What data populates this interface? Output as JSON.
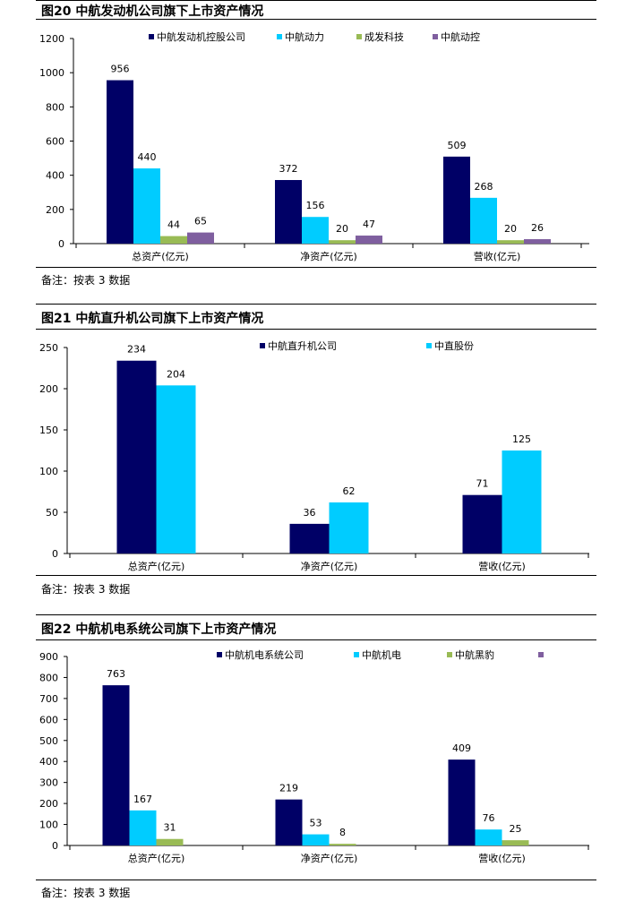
{
  "charts": [
    {
      "title": "图20 中航发动机公司旗下上市资产情况",
      "note": "备注：按表 3 数据"
    },
    {
      "title": "图21 中航直升机公司旗下上市资产情况",
      "note": "备注：按表 3 数据"
    },
    {
      "title": "图22 中航机电系统公司旗下上市资产情况",
      "note": "备注：按表 3 数据"
    }
  ],
  "chart_data": [
    {
      "type": "bar",
      "title": "图20 中航发动机公司旗下上市资产情况",
      "categories": [
        "总资产(亿元)",
        "净资产(亿元)",
        "营收(亿元)"
      ],
      "series": [
        {
          "name": "中航发动机控股公司",
          "color": "#000066",
          "values": [
            956,
            372,
            509
          ]
        },
        {
          "name": "中航动力",
          "color": "#00ccff",
          "values": [
            440,
            156,
            268
          ]
        },
        {
          "name": "成发科技",
          "color": "#99bb55",
          "values": [
            44,
            20,
            20
          ]
        },
        {
          "name": "中航动控",
          "color": "#7f5f9f",
          "values": [
            65,
            47,
            26
          ]
        }
      ],
      "ylim": [
        0,
        1200
      ],
      "yticks": [
        0,
        200,
        400,
        600,
        800,
        1000,
        1200
      ],
      "legend": "top",
      "grid": false
    },
    {
      "type": "bar",
      "title": "图21 中航直升机公司旗下上市资产情况",
      "categories": [
        "总资产(亿元)",
        "净资产(亿元)",
        "营收(亿元)"
      ],
      "series": [
        {
          "name": "中航直升机公司",
          "color": "#000066",
          "values": [
            234,
            36,
            71
          ]
        },
        {
          "name": "中直股份",
          "color": "#00ccff",
          "values": [
            204,
            62,
            125
          ]
        }
      ],
      "ylim": [
        0,
        250
      ],
      "yticks": [
        0,
        50,
        100,
        150,
        200,
        250
      ],
      "legend": "top",
      "grid": false
    },
    {
      "type": "bar",
      "title": "图22 中航机电系统公司旗下上市资产情况",
      "categories": [
        "总资产(亿元)",
        "净资产(亿元)",
        "营收(亿元)"
      ],
      "series": [
        {
          "name": "中航机电系统公司",
          "color": "#000066",
          "values": [
            763,
            219,
            409
          ]
        },
        {
          "name": "中航机电",
          "color": "#00ccff",
          "values": [
            167,
            53,
            76
          ]
        },
        {
          "name": "中航黑豹",
          "color": "#99bb55",
          "values": [
            31,
            8,
            25
          ]
        },
        {
          "name": "",
          "color": "#7f5f9f",
          "values": [
            null,
            null,
            null
          ]
        }
      ],
      "ylim": [
        0,
        900
      ],
      "yticks": [
        0,
        100,
        200,
        300,
        400,
        500,
        600,
        700,
        800,
        900
      ],
      "legend": "top",
      "grid": false
    }
  ]
}
